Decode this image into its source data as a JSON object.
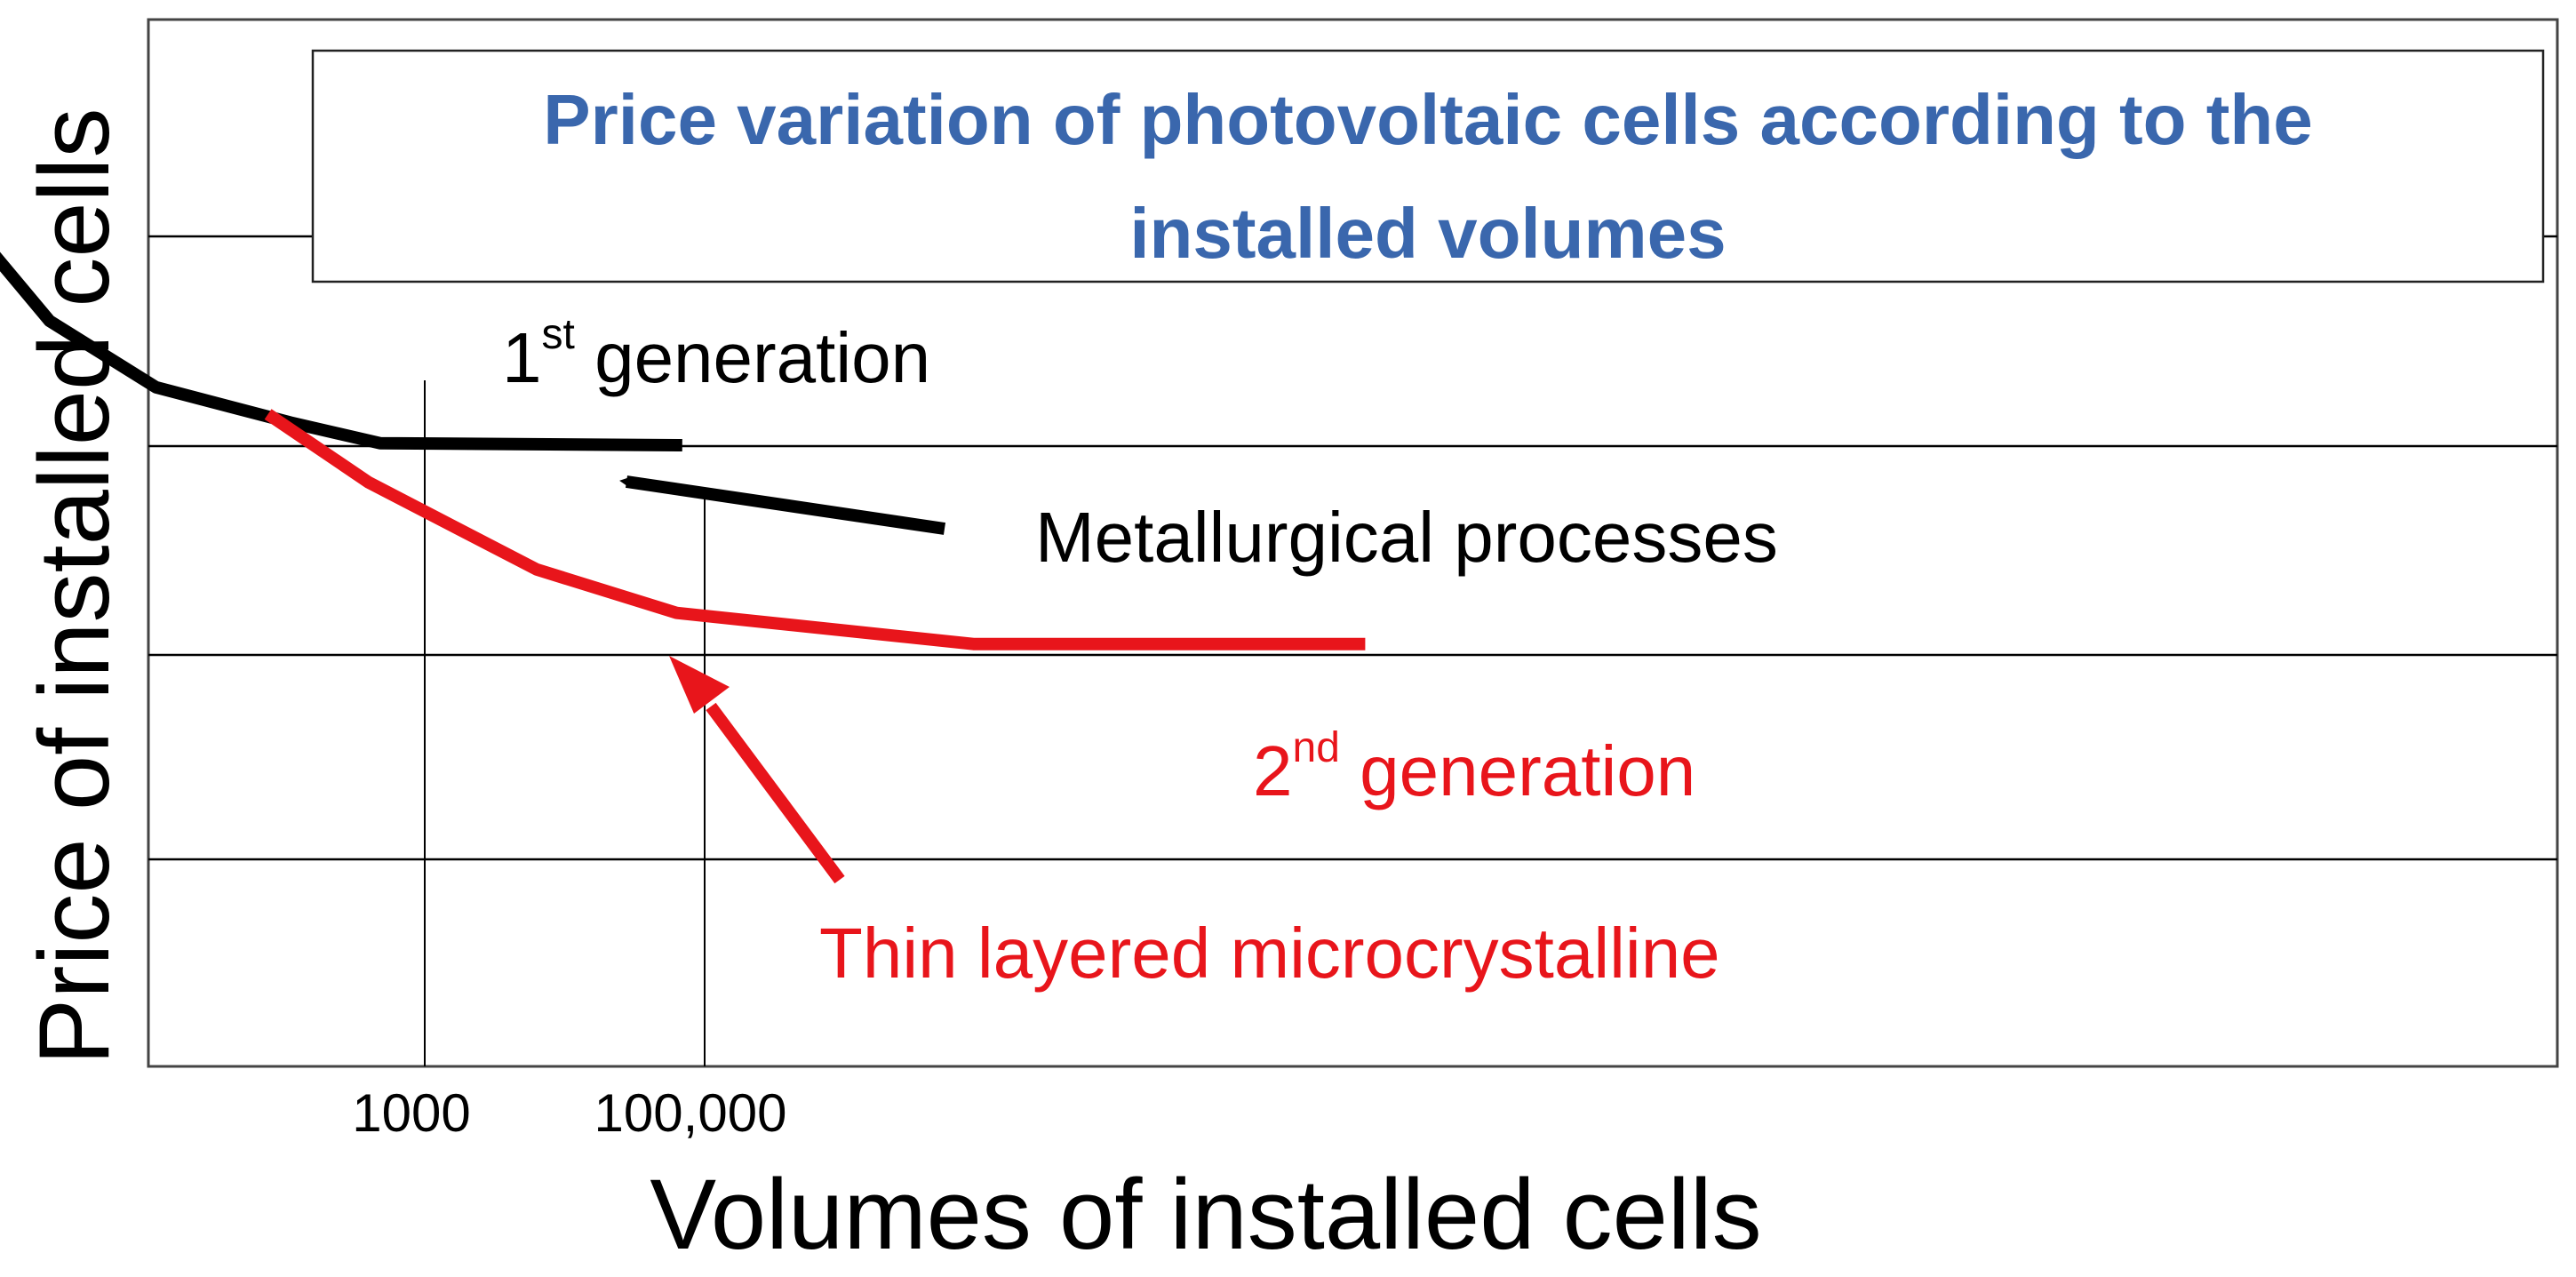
{
  "chart_data": {
    "type": "line",
    "title": "Price variation of photovoltaic cells according to the installed volumes",
    "title_lines": [
      "Price variation of photovoltaic cells according to the",
      "installed volumes"
    ],
    "xlabel": "Volumes of installed cells",
    "ylabel": "Price of installed cells",
    "x_ticks": [
      {
        "label": "1000",
        "value": 1000
      },
      {
        "label": "100,000",
        "value": 100000
      }
    ],
    "grid": true,
    "series": [
      {
        "color": "#000000",
        "points": [
          [
            0.03,
            4.95
          ],
          [
            0.2,
            4.02
          ],
          [
            0.33,
            3.6
          ],
          [
            0.52,
            3.28
          ],
          [
            0.76,
            3.11
          ],
          [
            0.92,
            3.01
          ],
          [
            1.46,
            3.0
          ]
        ]
      },
      {
        "color": "#e8151b",
        "points": [
          [
            0.72,
            3.15
          ],
          [
            0.9,
            2.82
          ],
          [
            1.2,
            2.4
          ],
          [
            1.45,
            2.19
          ],
          [
            1.98,
            2.04
          ],
          [
            2.68,
            2.04
          ]
        ]
      }
    ],
    "annotations": [
      {
        "id": "gen1",
        "base": "1",
        "sup": "st",
        "rest": " generation",
        "color": "#000000"
      },
      {
        "id": "metal",
        "text": "Metallurgical processes",
        "color": "#000000"
      },
      {
        "id": "gen2",
        "base": "2",
        "sup": "nd",
        "rest": " generation",
        "color": "#e8151b"
      },
      {
        "id": "thin",
        "text": "Thin layered microcrystalline",
        "color": "#e8151b"
      }
    ],
    "colors": {
      "title": "#3a67ad",
      "grid": "#000000",
      "series_1": "#000000",
      "series_2": "#e8151b"
    }
  }
}
